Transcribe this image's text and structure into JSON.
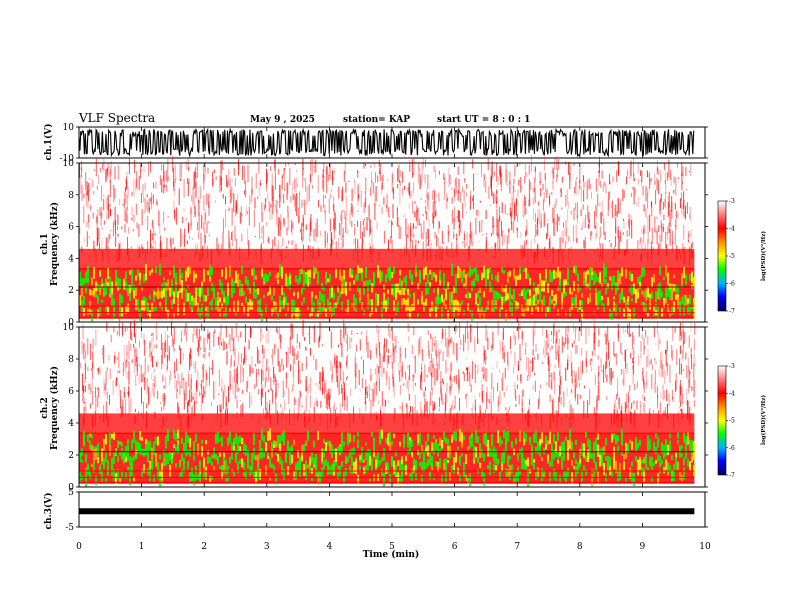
{
  "header": {
    "title": "VLF Spectra",
    "date": "May 9  , 2025",
    "station": "station= KAP",
    "start": "start  UT  =   8  : 0   : 1"
  },
  "chart_data": [
    {
      "id": "ch1-waveform",
      "type": "line",
      "ylabel": "ch.1(V)",
      "ylim": [
        -10,
        10
      ],
      "yticks": [
        10,
        -10
      ],
      "x": [
        0,
        9.83
      ],
      "note_fill": "dense black waveform spanning roughly -8 to +8 V"
    },
    {
      "id": "ch1-spectrogram",
      "type": "heatmap",
      "ylabel": "Frequency  (kHz)",
      "ylabel_prefix": "ch.1",
      "ylim": [
        0,
        10
      ],
      "yticks": [
        0,
        2,
        4,
        6,
        8,
        10
      ],
      "colorbar": {
        "label": "log(PSD)(V²/Hz)",
        "range": [
          -7,
          -3
        ],
        "ticks": [
          -3,
          -4,
          -5,
          -6,
          -7
        ]
      }
    },
    {
      "id": "ch2-spectrogram",
      "type": "heatmap",
      "ylabel": "Frequency  (kHz)",
      "ylabel_prefix": "ch.2",
      "ylim": [
        0,
        10
      ],
      "yticks": [
        0,
        2,
        4,
        6,
        8,
        10
      ],
      "colorbar": {
        "label": "log(PSD)(V²/Hz)",
        "range": [
          -7,
          -3
        ],
        "ticks": [
          -3,
          -4,
          -5,
          -6,
          -7
        ]
      }
    },
    {
      "id": "ch3-waveform",
      "type": "line",
      "ylabel": "ch.3(V)",
      "ylim": [
        -5,
        5
      ],
      "yticks": [
        5,
        -5
      ],
      "baseline": -0.5
    }
  ],
  "xaxis": {
    "label": "Time  (min)",
    "range": [
      0,
      10
    ],
    "ticks": [
      0,
      1,
      2,
      3,
      4,
      5,
      6,
      7,
      8,
      9,
      10
    ],
    "data_end": 9.83
  },
  "colors": {
    "red": "#ff0000",
    "yellow": "#ffff00",
    "green": "#00ff00",
    "blue": "#0000ff",
    "navy": "#000080"
  }
}
